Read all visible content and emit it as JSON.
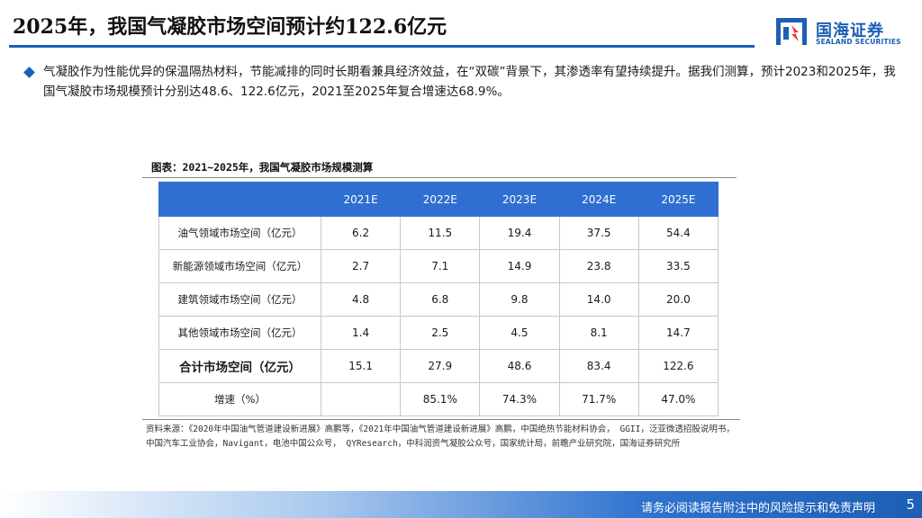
{
  "header": {
    "title": "2025年，我国气凝胶市场空间预计约122.6亿元",
    "logo_cn": "国海证券",
    "logo_en": "SEALAND SECURITIES"
  },
  "intro": {
    "text": "气凝胶作为性能优异的保温隔热材料，节能减排的同时长期看兼具经济效益，在“双碳”背景下，其渗透率有望持续提升。据我们测算，预计2023和2025年，我国气凝胶市场规模预计分别达48.6、122.6亿元，2021至2025年复合增速达68.9%。"
  },
  "table": {
    "caption": "图表：2021~2025年，我国气凝胶市场规模测算",
    "corner": "",
    "columns": [
      "2021E",
      "2022E",
      "2023E",
      "2024E",
      "2025E"
    ],
    "rows": [
      {
        "label": "油气领域市场空间（亿元）",
        "values": [
          "6.2",
          "11.5",
          "19.4",
          "37.5",
          "54.4"
        ]
      },
      {
        "label": "新能源领域市场空间（亿元）",
        "values": [
          "2.7",
          "7.1",
          "14.9",
          "23.8",
          "33.5"
        ]
      },
      {
        "label": "建筑领域市场空间（亿元）",
        "values": [
          "4.8",
          "6.8",
          "9.8",
          "14.0",
          "20.0"
        ]
      },
      {
        "label": "其他领域市场空间（亿元）",
        "values": [
          "1.4",
          "2.5",
          "4.5",
          "8.1",
          "14.7"
        ]
      },
      {
        "label": "合计市场空间（亿元）",
        "values": [
          "15.1",
          "27.9",
          "48.6",
          "83.4",
          "122.6"
        ],
        "total": true
      },
      {
        "label": "增速（%）",
        "values": [
          "",
          "85.1%",
          "74.3%",
          "71.7%",
          "47.0%"
        ]
      }
    ]
  },
  "source": {
    "text": "资料来源：《2020年中国油气管道建设新进展》高鹏等，《2021年中国油气管道建设新进展》高鹏，中国绝热节能材料协会， GGII，泛亚微透招股说明书，中国汽车工业协会，Navigant，电池中国公众号， QYResearch，中科润资气凝胶公众号，国家统计局，前瞻产业研究院，国海证券研究所"
  },
  "footer": {
    "disclaimer": "请务必阅读报告附注中的风险提示和免责声明",
    "page": "5"
  },
  "colors": {
    "brand": "#1d5fb3",
    "table_header": "#2e6fd1"
  }
}
